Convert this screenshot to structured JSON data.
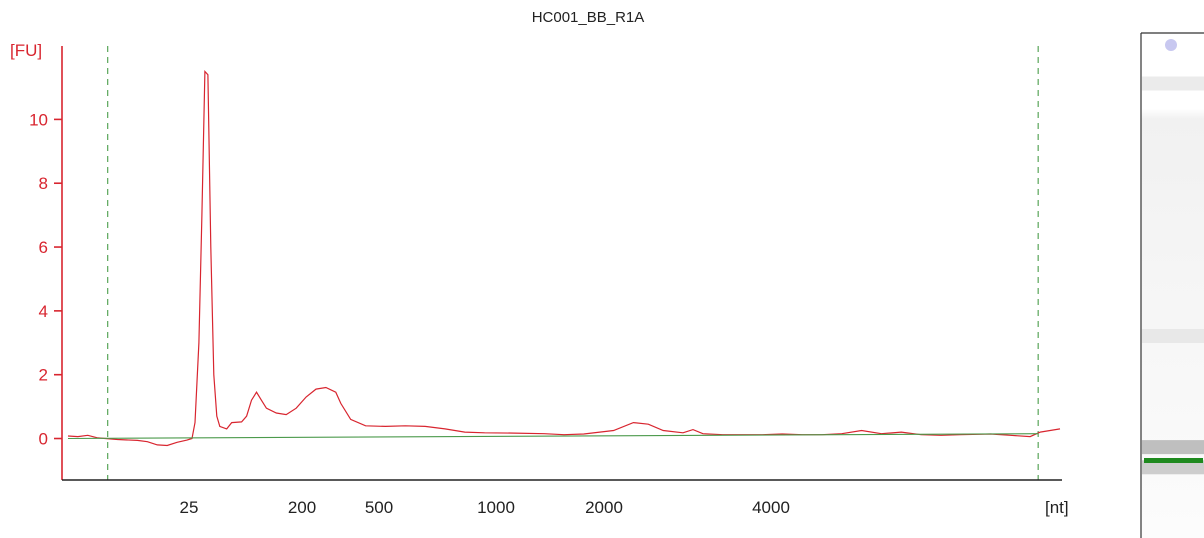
{
  "chart_data": {
    "type": "line",
    "title": "HC001_BB_R1A",
    "ylabel": "[FU]",
    "xlabel": "[nt]",
    "ylim": [
      -1.3,
      12.3
    ],
    "yticks": [
      0,
      2,
      4,
      6,
      8,
      10
    ],
    "x_axis_scale": "nonlinear (electropherogram size ladder)",
    "xticks": [
      {
        "label": "25",
        "value": 25
      },
      {
        "label": "200",
        "value": 200
      },
      {
        "label": "500",
        "value": 500
      },
      {
        "label": "1000",
        "value": 1000
      },
      {
        "label": "2000",
        "value": 2000
      },
      {
        "label": "4000",
        "value": 4000
      }
    ],
    "series": [
      {
        "role": "signal",
        "color": "#d8252f",
        "points": [
          [
            0.0,
            0.08
          ],
          [
            0.01,
            0.06
          ],
          [
            0.02,
            0.1
          ],
          [
            0.03,
            0.02
          ],
          [
            0.05,
            -0.03
          ],
          [
            0.07,
            -0.06
          ],
          [
            0.08,
            -0.1
          ],
          [
            0.09,
            -0.2
          ],
          [
            0.1,
            -0.22
          ],
          [
            0.11,
            -0.12
          ],
          [
            0.12,
            -0.05
          ],
          [
            0.125,
            0.0
          ],
          [
            0.128,
            0.5
          ],
          [
            0.132,
            3.0
          ],
          [
            0.135,
            7.0
          ],
          [
            0.138,
            11.5
          ],
          [
            0.141,
            11.4
          ],
          [
            0.144,
            6.0
          ],
          [
            0.147,
            2.0
          ],
          [
            0.15,
            0.7
          ],
          [
            0.153,
            0.38
          ],
          [
            0.16,
            0.3
          ],
          [
            0.165,
            0.5
          ],
          [
            0.175,
            0.52
          ],
          [
            0.18,
            0.7
          ],
          [
            0.185,
            1.2
          ],
          [
            0.19,
            1.45
          ],
          [
            0.195,
            1.2
          ],
          [
            0.2,
            0.95
          ],
          [
            0.21,
            0.8
          ],
          [
            0.22,
            0.75
          ],
          [
            0.23,
            0.95
          ],
          [
            0.24,
            1.3
          ],
          [
            0.25,
            1.55
          ],
          [
            0.26,
            1.6
          ],
          [
            0.27,
            1.45
          ],
          [
            0.275,
            1.1
          ],
          [
            0.285,
            0.6
          ],
          [
            0.3,
            0.4
          ],
          [
            0.32,
            0.38
          ],
          [
            0.34,
            0.4
          ],
          [
            0.36,
            0.38
          ],
          [
            0.38,
            0.3
          ],
          [
            0.4,
            0.2
          ],
          [
            0.42,
            0.18
          ],
          [
            0.45,
            0.17
          ],
          [
            0.48,
            0.15
          ],
          [
            0.5,
            0.12
          ],
          [
            0.52,
            0.14
          ],
          [
            0.55,
            0.25
          ],
          [
            0.57,
            0.5
          ],
          [
            0.585,
            0.45
          ],
          [
            0.6,
            0.25
          ],
          [
            0.62,
            0.18
          ],
          [
            0.63,
            0.28
          ],
          [
            0.64,
            0.15
          ],
          [
            0.66,
            0.12
          ],
          [
            0.7,
            0.12
          ],
          [
            0.72,
            0.14
          ],
          [
            0.74,
            0.12
          ],
          [
            0.76,
            0.12
          ],
          [
            0.78,
            0.15
          ],
          [
            0.8,
            0.25
          ],
          [
            0.82,
            0.15
          ],
          [
            0.84,
            0.2
          ],
          [
            0.86,
            0.12
          ],
          [
            0.88,
            0.1
          ],
          [
            0.9,
            0.12
          ],
          [
            0.93,
            0.14
          ],
          [
            0.95,
            0.1
          ],
          [
            0.97,
            0.06
          ],
          [
            0.98,
            0.2
          ],
          [
            0.99,
            0.25
          ],
          [
            1.0,
            0.3
          ]
        ]
      },
      {
        "role": "baseline",
        "color": "#4c9a4c",
        "points": [
          [
            0.0,
            0.0
          ],
          [
            0.978,
            0.15
          ]
        ]
      }
    ],
    "markers": [
      {
        "role": "lower-marker",
        "color": "#5aa55a",
        "x": 0.04
      },
      {
        "role": "upper-marker",
        "color": "#5aa55a",
        "x": 0.978
      }
    ],
    "gel_lane": {
      "top_dot_color": "#c8c8f0",
      "green_band_color": "#1f8a1f",
      "bands": [
        {
          "level": 0.1,
          "intensity": 0.15
        },
        {
          "level": 0.6,
          "intensity": 0.12
        },
        {
          "level": 0.82,
          "intensity": 0.45
        },
        {
          "level": 0.86,
          "intensity": 0.35
        }
      ]
    },
    "grid": false,
    "legend": "none"
  }
}
